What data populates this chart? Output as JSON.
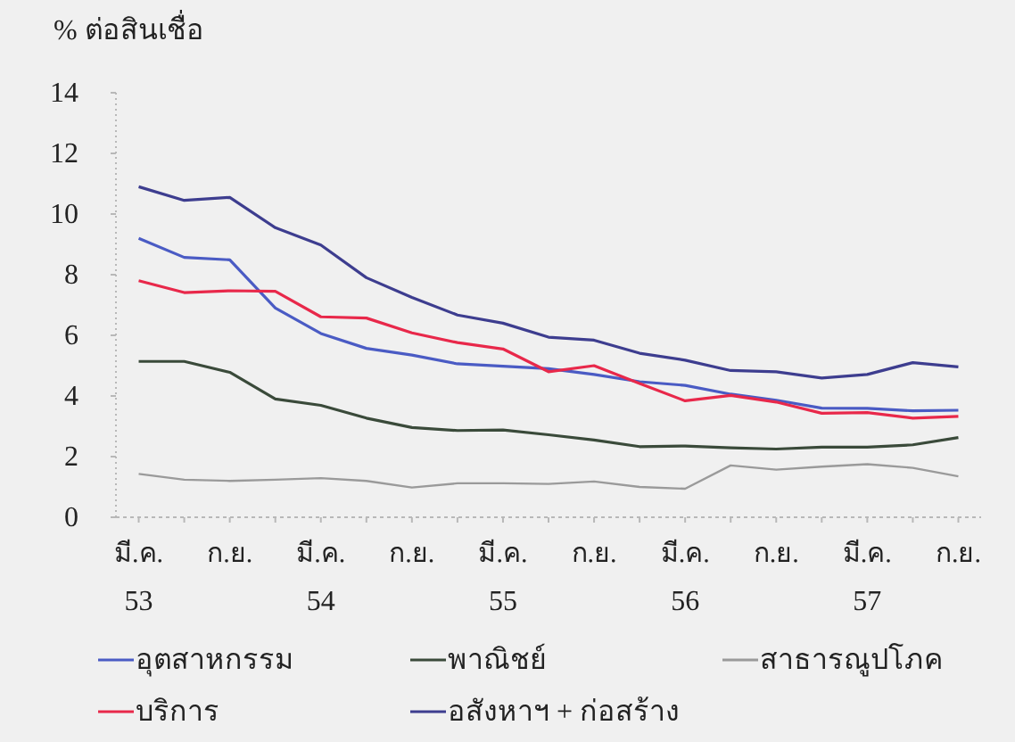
{
  "chart_data": {
    "type": "line",
    "ylabel": "% ต่อสินเชื่อ",
    "categories": [
      "มี.ค.\n53",
      null,
      "ก.ย.",
      null,
      "มี.ค.\n54",
      null,
      "ก.ย.",
      null,
      "มี.ค.\n55",
      null,
      "ก.ย.",
      null,
      "มี.ค.\n56",
      null,
      "ก.ย.",
      null,
      "มี.ค.\n57",
      null,
      "ก.ย."
    ],
    "ylim": [
      0,
      14
    ],
    "yticks": [
      0,
      2,
      4,
      6,
      8,
      10,
      12,
      14
    ],
    "grid": false,
    "legend": "bottom",
    "marker": "none",
    "line_style": "solid",
    "series": [
      {
        "name": "อุตสาหกรรม",
        "color": "#4a5bc4",
        "values": [
          9.2,
          8.57,
          8.49,
          6.9,
          6.06,
          5.57,
          5.35,
          5.06,
          4.98,
          4.9,
          4.71,
          4.47,
          4.35,
          4.06,
          3.86,
          3.6,
          3.59,
          3.51,
          3.53
        ]
      },
      {
        "name": "พาณิชย์",
        "color": "#3a4a3a",
        "values": [
          5.14,
          5.14,
          4.78,
          3.9,
          3.69,
          3.27,
          2.96,
          2.86,
          2.88,
          2.72,
          2.55,
          2.33,
          2.35,
          2.29,
          2.25,
          2.31,
          2.31,
          2.39,
          2.63
        ]
      },
      {
        "name": "สาธารณูปโภค",
        "color": "#9a9a9a",
        "values": [
          1.43,
          1.24,
          1.2,
          1.24,
          1.29,
          1.2,
          0.98,
          1.12,
          1.12,
          1.1,
          1.18,
          1.0,
          0.94,
          1.71,
          1.57,
          1.67,
          1.75,
          1.63,
          1.35
        ]
      },
      {
        "name": "บริการ",
        "color": "#e8284a",
        "values": [
          7.8,
          7.41,
          7.47,
          7.45,
          6.61,
          6.57,
          6.08,
          5.76,
          5.55,
          4.8,
          5.0,
          4.41,
          3.84,
          4.02,
          3.8,
          3.43,
          3.45,
          3.27,
          3.33
        ]
      },
      {
        "name": "อสังหาฯ + ก่อสร้าง",
        "color": "#3d3d8f",
        "values": [
          10.9,
          10.45,
          10.55,
          9.55,
          8.98,
          7.9,
          7.25,
          6.67,
          6.4,
          5.94,
          5.84,
          5.41,
          5.18,
          4.84,
          4.8,
          4.59,
          4.71,
          5.1,
          4.96
        ]
      }
    ]
  }
}
